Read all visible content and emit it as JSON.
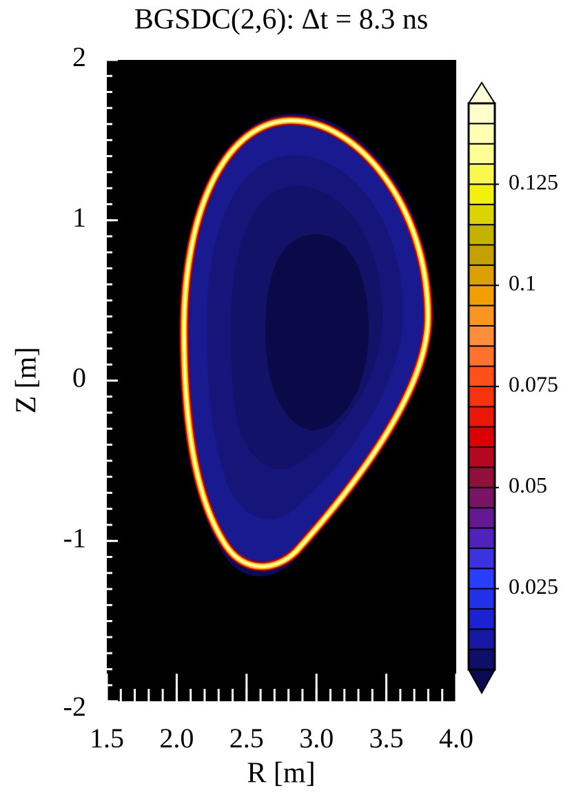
{
  "chart_data": {
    "type": "contour",
    "title": "BGSDC(2,6): Δt = 8.3 ns",
    "x_label": "R [m]",
    "y_label": "Z [m]",
    "xlim": [
      1.5,
      4.0
    ],
    "xticks": [
      1.5,
      {
        "value": 2,
        "label": "2.0"
      },
      2.5,
      {
        "value": 3,
        "label": "3.0"
      },
      3.5,
      {
        "value": 4,
        "label": "4.0"
      }
    ],
    "x_minor_step": 0.1,
    "ylim": [
      -2,
      2
    ],
    "yticks": [
      2,
      1,
      0,
      -1,
      -2
    ],
    "y_minor_step": 0.1,
    "colorbar": {
      "clim": [
        0.005,
        0.145
      ],
      "level_step": 0.005,
      "ticks": [
        0.025,
        0.05,
        0.075,
        0.1,
        0.125
      ],
      "colors": [
        "#0a0a50",
        "#1a20d0",
        "#2a40ff",
        "#5a1aa8",
        "#8a1040",
        "#e00000",
        "#ff4010",
        "#ff8c40",
        "#f0a000",
        "#b8a000",
        "#f0f000",
        "#ffffa0",
        "#ffffd8"
      ],
      "background": "#000000"
    }
  }
}
